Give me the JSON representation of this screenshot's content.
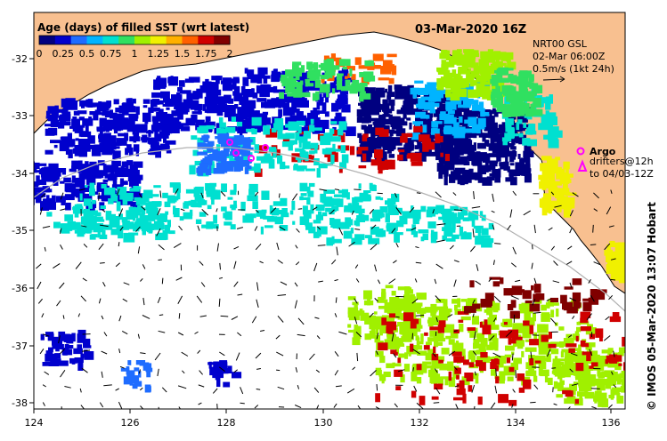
{
  "colorbar": {
    "title": "Age (days) of filled SST (wrt latest)",
    "ticks": [
      "0",
      "0.25",
      "0.5",
      "0.75",
      "1",
      "1.25",
      "1.5",
      "1.75",
      "2"
    ],
    "colors": [
      "#000080",
      "#0000cd",
      "#1e6cff",
      "#00b4ff",
      "#00e0d0",
      "#30e060",
      "#a0f000",
      "#f0f000",
      "#ffb000",
      "#ff6000",
      "#d00000",
      "#800000"
    ]
  },
  "date_title": "03-Mar-2020 16Z",
  "current_legend": {
    "line1": "NRT00 GSL",
    "line2": "02-Mar 06:00Z",
    "line3": "0.5m/s (1kt 24h)"
  },
  "argo_legend": {
    "label": "Argo",
    "line2": "drifters@12h",
    "line3": "to 04/03-12Z",
    "argo_color": "#ff00ff"
  },
  "credit": "© IMOS 05-Mar-2020 13:07 Hobart",
  "axes": {
    "x_ticks": [
      "124",
      "126",
      "128",
      "130",
      "132",
      "134",
      "136"
    ],
    "y_ticks": [
      "-32",
      "-33",
      "-34",
      "-35",
      "-36",
      "-37",
      "-38"
    ]
  },
  "colors": {
    "land": "#f8c090",
    "ocean_nodata": "#ffffff",
    "coastline": "#000000",
    "bathymetry": "#b0b0b0"
  }
}
